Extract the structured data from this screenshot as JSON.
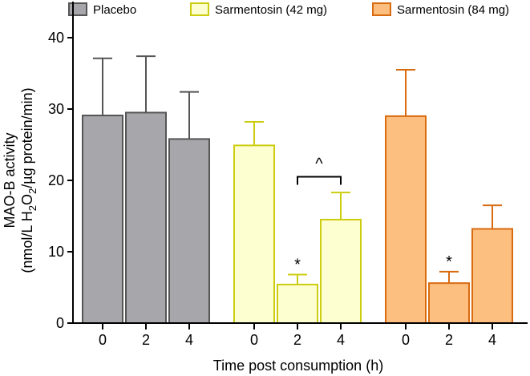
{
  "chart_data": {
    "type": "bar",
    "title": "",
    "xlabel": "Time post consumption (h)",
    "ylabel_line1": "MAO-B activity",
    "ylabel_line2_prefix": "(nmol/L H",
    "ylabel_sub1": "2",
    "ylabel_mid": "O",
    "ylabel_sub2": "2",
    "ylabel_suffix": "/µg protein/min)",
    "ylim": [
      0,
      45
    ],
    "yticks": [
      0,
      10,
      20,
      30,
      40
    ],
    "groups": [
      {
        "name": "Placebo",
        "fill": "#a7a6ab",
        "stroke": "#555555",
        "categories": [
          "0",
          "2",
          "4"
        ],
        "values": [
          29.1,
          29.5,
          25.8
        ],
        "errors": [
          8.0,
          7.9,
          6.6
        ]
      },
      {
        "name": "Sarmentosin (42 mg)",
        "fill": "#feffd0",
        "stroke": "#cccc10",
        "categories": [
          "0",
          "2",
          "4"
        ],
        "values": [
          24.9,
          5.4,
          14.5
        ],
        "errors": [
          3.3,
          1.4,
          3.8
        ]
      },
      {
        "name": "Sarmentosin (84 mg)",
        "fill": "#fdbf80",
        "stroke": "#d86b10",
        "categories": [
          "0",
          "2",
          "4"
        ],
        "values": [
          29.0,
          5.6,
          13.2
        ],
        "errors": [
          6.5,
          1.6,
          3.3
        ]
      }
    ],
    "annotations": [
      {
        "text": "*",
        "group": 1,
        "bar": 1
      },
      {
        "text": "*",
        "group": 2,
        "bar": 1
      },
      {
        "text": "^",
        "group": 1,
        "from_bar": 1,
        "to_bar": 2,
        "bracket_y": 20.5
      }
    ],
    "legend": "top"
  }
}
